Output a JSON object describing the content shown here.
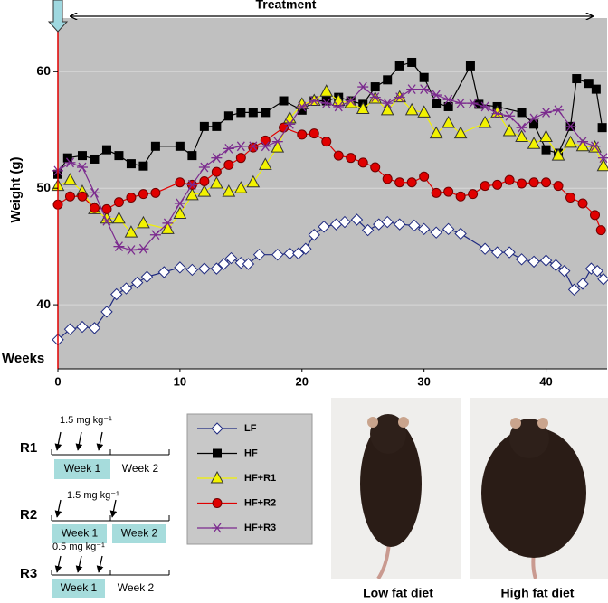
{
  "chart_data": {
    "type": "line",
    "xlabel": "Weeks",
    "ylabel": "Weight (g)",
    "annotation": "Treatment",
    "xlim": [
      0,
      45
    ],
    "ylim": [
      34.5,
      64.6
    ],
    "xticks": [
      0,
      10,
      20,
      30,
      40
    ],
    "yticks": [
      40,
      50,
      60
    ],
    "grid": true,
    "series": [
      {
        "name": "LF",
        "color": "#1f2a80",
        "marker": "diamond",
        "marker_fill": "#ffffff",
        "x": [
          0,
          1,
          2,
          3,
          4,
          4.8,
          5.6,
          6.5,
          7.3,
          8.7,
          10,
          11,
          12,
          13,
          13.6,
          14.2,
          15,
          15.6,
          16.5,
          18,
          19,
          19.7,
          20.3,
          21,
          21.8,
          22.8,
          23.5,
          24.5,
          25.4,
          26.3,
          27,
          28,
          29.2,
          30,
          31,
          32,
          33,
          35,
          36,
          37,
          38,
          39,
          40,
          40.8,
          41.5,
          42.3,
          43,
          43.7,
          44.2,
          44.7
        ],
        "values": [
          37.0,
          37.9,
          38.1,
          38.0,
          39.4,
          40.9,
          41.4,
          41.9,
          42.4,
          42.8,
          43.2,
          43.0,
          43.1,
          43.1,
          43.5,
          44.0,
          43.6,
          43.5,
          44.3,
          44.3,
          44.4,
          44.4,
          44.8,
          46.0,
          46.7,
          46.9,
          47.1,
          47.3,
          46.4,
          46.9,
          47.1,
          46.9,
          46.8,
          46.5,
          46.2,
          46.5,
          46.1,
          44.8,
          44.5,
          44.5,
          43.9,
          43.7,
          43.8,
          43.4,
          42.9,
          41.3,
          41.8,
          43.1,
          42.9,
          42.2
        ]
      },
      {
        "name": "HF",
        "color": "#000000",
        "marker": "square",
        "marker_fill": "#000000",
        "x": [
          0,
          0.8,
          2,
          3,
          4,
          5,
          6,
          7,
          8,
          10,
          11,
          12,
          13,
          14,
          15,
          16,
          17,
          18.5,
          20,
          21,
          22,
          23,
          24,
          25,
          26,
          27,
          28,
          29,
          30,
          31,
          32,
          33.8,
          34.5,
          36,
          38,
          39,
          40,
          41,
          42,
          42.5,
          43.5,
          44.1,
          44.6
        ],
        "values": [
          51.2,
          52.6,
          52.8,
          52.5,
          53.3,
          52.8,
          52.1,
          51.9,
          53.6,
          53.6,
          52.8,
          55.3,
          55.3,
          56.2,
          56.5,
          56.5,
          56.5,
          57.5,
          56.7,
          57.5,
          57.5,
          57.8,
          57.5,
          57.2,
          58.7,
          59.3,
          60.5,
          60.8,
          59.5,
          57.3,
          57.0,
          60.5,
          57.2,
          57.0,
          56.5,
          55.5,
          53.3,
          53.0,
          55.3,
          59.4,
          59.0,
          58.5,
          55.2
        ]
      },
      {
        "name": "HF+R1",
        "color": "#f2f200",
        "marker": "triangle",
        "marker_fill": "#f2f200",
        "x": [
          0,
          1,
          2,
          3,
          4,
          5,
          6,
          7,
          9,
          10,
          11,
          12,
          13,
          14,
          15,
          16,
          17,
          18,
          19,
          20,
          21,
          22,
          23,
          24,
          25,
          26,
          27,
          28,
          29,
          30,
          31,
          32,
          33,
          35,
          36,
          37,
          38,
          39,
          40,
          41,
          42,
          43,
          44,
          44.7
        ],
        "values": [
          50.2,
          50.7,
          49.7,
          48.2,
          47.4,
          47.4,
          46.2,
          47.0,
          46.5,
          47.8,
          49.4,
          49.7,
          50.4,
          49.7,
          50.0,
          50.5,
          52.0,
          53.5,
          56.0,
          57.2,
          57.5,
          58.3,
          57.5,
          57.3,
          56.8,
          57.7,
          56.7,
          57.8,
          56.7,
          56.5,
          54.7,
          55.6,
          54.7,
          55.6,
          56.5,
          54.9,
          54.4,
          53.8,
          54.4,
          52.8,
          53.9,
          53.6,
          53.5,
          51.9
        ]
      },
      {
        "name": "HF+R2",
        "color": "#e00000",
        "marker": "circle",
        "marker_fill": "#e00000",
        "x": [
          0,
          1,
          2,
          3,
          4,
          5,
          6,
          7,
          8,
          10,
          11,
          12,
          13,
          14,
          15,
          16,
          17,
          18.5,
          20,
          21,
          22,
          23,
          24,
          25,
          26,
          27,
          28,
          29,
          30,
          31,
          32,
          33,
          34,
          35,
          36,
          37,
          38,
          39,
          40,
          41,
          42,
          43,
          44,
          44.5
        ],
        "values": [
          48.6,
          49.3,
          49.3,
          48.3,
          48.2,
          48.8,
          49.2,
          49.5,
          49.6,
          50.5,
          50.3,
          50.6,
          51.4,
          52.0,
          52.6,
          53.5,
          54.1,
          55.2,
          54.6,
          54.7,
          54.0,
          52.8,
          52.6,
          52.2,
          51.8,
          50.8,
          50.5,
          50.5,
          51.0,
          49.6,
          49.7,
          49.3,
          49.5,
          50.2,
          50.3,
          50.7,
          50.4,
          50.5,
          50.5,
          50.2,
          49.2,
          48.7,
          47.7,
          46.4
        ]
      },
      {
        "name": "HF+R3",
        "color": "#7b2a8e",
        "marker": "asterisk",
        "marker_fill": "#7b2a8e",
        "x": [
          0,
          1,
          2,
          3,
          4,
          5,
          6,
          7,
          8,
          9,
          10,
          11,
          12,
          13,
          14,
          15,
          16,
          17,
          18,
          19,
          20,
          21,
          22,
          23,
          24,
          25,
          26,
          27,
          28,
          29,
          30,
          31,
          32,
          33,
          34,
          35,
          36,
          37,
          38,
          39,
          40,
          41,
          42,
          43,
          44,
          44.7
        ],
        "values": [
          51.5,
          52.2,
          51.8,
          49.6,
          47.2,
          45.0,
          44.7,
          44.8,
          46.0,
          47.0,
          48.7,
          50.3,
          51.8,
          52.6,
          53.4,
          53.6,
          53.6,
          53.6,
          54.0,
          55.5,
          57.0,
          57.5,
          57.3,
          57.0,
          57.5,
          58.7,
          57.8,
          57.3,
          57.8,
          58.5,
          58.5,
          58.0,
          57.6,
          57.3,
          57.3,
          57.0,
          56.4,
          56.2,
          55.2,
          56.0,
          56.5,
          56.7,
          55.3,
          54.0,
          53.6,
          52.6
        ]
      }
    ]
  },
  "dosing": [
    {
      "name": "R1",
      "dose": "1.5 mg kg⁻¹",
      "week1": "Week 1",
      "week2": "Week 2"
    },
    {
      "name": "R2",
      "dose": "1.5 mg kg⁻¹",
      "week1": "Week 1",
      "week2": "Week 2"
    },
    {
      "name": "R3",
      "dose": "0.5 mg kg⁻¹",
      "week1": "Week 1",
      "week2": "Week 2"
    }
  ],
  "photos": [
    {
      "caption": "Low fat diet"
    },
    {
      "caption": "High fat diet"
    }
  ]
}
